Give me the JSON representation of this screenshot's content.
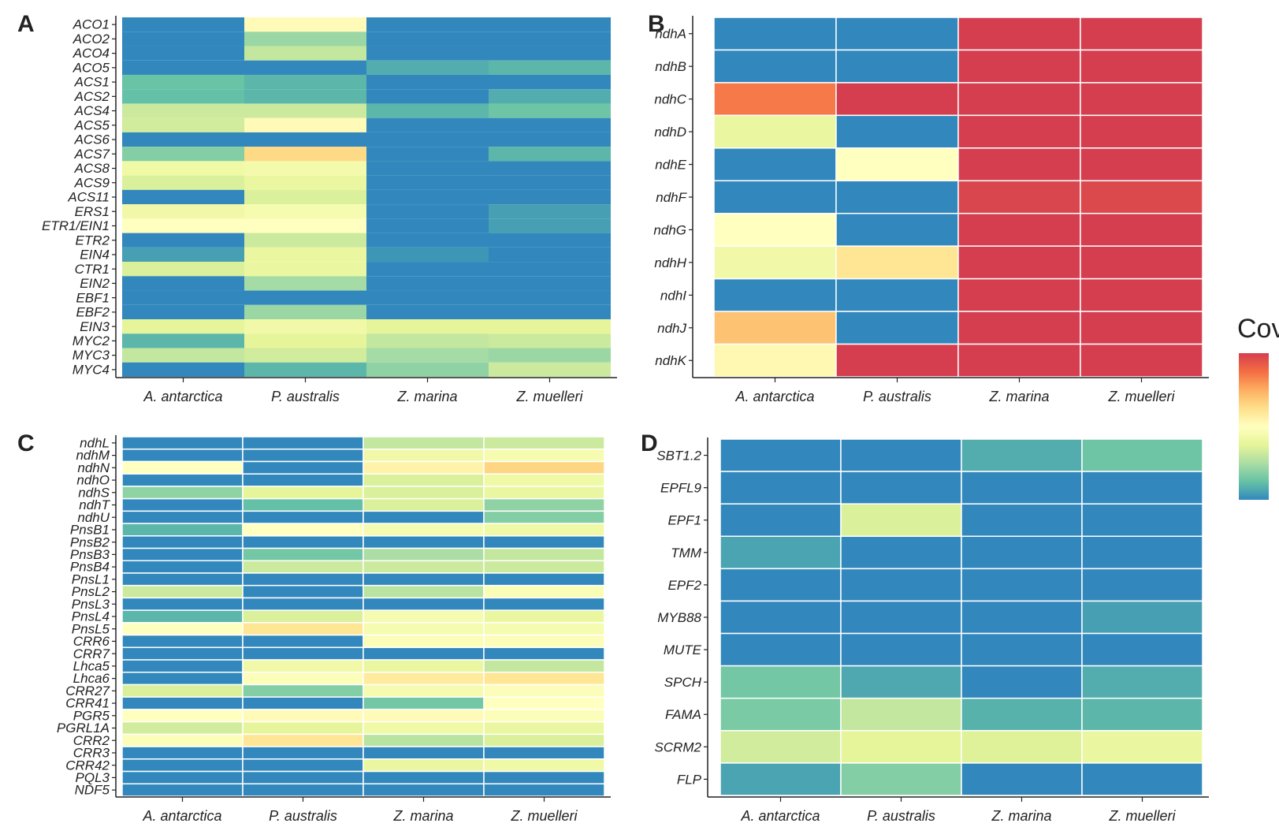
{
  "colors": {
    "scale": [
      "#3288bd",
      "#66c2a5",
      "#abdda4",
      "#e6f598",
      "#ffffbf",
      "#fee08b",
      "#fdae61",
      "#f46d43",
      "#d53e4f"
    ],
    "cell_border_B": "#ffffff",
    "axis": "#222222"
  },
  "legend": {
    "title": "Cov"
  },
  "chart_data": [
    {
      "type": "heatmap",
      "panel_label": "A",
      "categories": [
        "A. antarctica",
        "P. australis",
        "Z. marina",
        "Z. muelleri"
      ],
      "rows": [
        "ACO1",
        "ACO2",
        "ACO4",
        "ACO5",
        "ACS1",
        "ACS2",
        "ACS4",
        "ACS5",
        "ACS6",
        "ACS7",
        "ACS8",
        "ACS9",
        "ACS11",
        "ERS1",
        "ETR1/EIN1",
        "ETR2",
        "EIN4",
        "CTR1",
        "EIN2",
        "EBF1",
        "EBF2",
        "EIN3",
        "MYC2",
        "MYC3",
        "MYC4"
      ],
      "values": [
        [
          0.0,
          0.52,
          0.0,
          0.0
        ],
        [
          0.0,
          0.22,
          0.0,
          0.0
        ],
        [
          0.0,
          0.3,
          0.0,
          0.0
        ],
        [
          0.0,
          0.0,
          0.08,
          0.1
        ],
        [
          0.13,
          0.1,
          0.0,
          0.0
        ],
        [
          0.12,
          0.1,
          0.0,
          0.08
        ],
        [
          0.32,
          0.32,
          0.1,
          0.14
        ],
        [
          0.33,
          0.52,
          0.0,
          0.0
        ],
        [
          0.0,
          0.0,
          0.0,
          0.0
        ],
        [
          0.18,
          0.64,
          0.0,
          0.1
        ],
        [
          0.42,
          0.44,
          0.0,
          0.0
        ],
        [
          0.35,
          0.4,
          0.0,
          0.0
        ],
        [
          0.0,
          0.35,
          0.0,
          0.0
        ],
        [
          0.43,
          0.45,
          0.0,
          0.05
        ],
        [
          0.5,
          0.5,
          0.0,
          0.05
        ],
        [
          0.0,
          0.32,
          0.0,
          0.0
        ],
        [
          0.05,
          0.4,
          0.03,
          0.0
        ],
        [
          0.35,
          0.4,
          0.0,
          0.0
        ],
        [
          0.0,
          0.24,
          0.0,
          0.0
        ],
        [
          0.0,
          0.0,
          0.0,
          0.0
        ],
        [
          0.0,
          0.22,
          0.0,
          0.0
        ],
        [
          0.38,
          0.43,
          0.38,
          0.38
        ],
        [
          0.1,
          0.38,
          0.3,
          0.32
        ],
        [
          0.3,
          0.33,
          0.24,
          0.22
        ],
        [
          0.0,
          0.1,
          0.2,
          0.32
        ]
      ],
      "cell_borders": false
    },
    {
      "type": "heatmap",
      "panel_label": "B",
      "categories": [
        "A. antarctica",
        "P. australis",
        "Z. marina",
        "Z. muelleri"
      ],
      "rows": [
        "ndhA",
        "ndhB",
        "ndhC",
        "ndhD",
        "ndhE",
        "ndhF",
        "ndhG",
        "ndhH",
        "ndhI",
        "ndhJ",
        "ndhK"
      ],
      "values": [
        [
          0.0,
          0.0,
          1.0,
          1.0
        ],
        [
          0.0,
          0.0,
          1.0,
          1.0
        ],
        [
          0.85,
          1.0,
          1.0,
          1.0
        ],
        [
          0.4,
          0.0,
          1.0,
          1.0
        ],
        [
          0.0,
          0.5,
          1.0,
          1.0
        ],
        [
          0.0,
          0.0,
          0.98,
          0.97
        ],
        [
          0.5,
          0.0,
          1.0,
          1.0
        ],
        [
          0.43,
          0.6,
          1.0,
          1.0
        ],
        [
          0.0,
          0.0,
          1.0,
          1.0
        ],
        [
          0.7,
          0.0,
          1.0,
          1.0
        ],
        [
          0.53,
          1.0,
          1.0,
          1.0
        ]
      ],
      "cell_borders": true
    },
    {
      "type": "heatmap",
      "panel_label": "C",
      "categories": [
        "A. antarctica",
        "P. australis",
        "Z. marina",
        "Z. muelleri"
      ],
      "rows": [
        "ndhL",
        "ndhM",
        "ndhN",
        "ndhO",
        "ndhS",
        "ndhT",
        "ndhU",
        "PnsB1",
        "PnsB2",
        "PnsB3",
        "PnsB4",
        "PnsL1",
        "PnsL2",
        "PnsL3",
        "PnsL4",
        "PnsL5",
        "CRR6",
        "CRR7",
        "Lhca5",
        "Lhca6",
        "CRR27",
        "CRR41",
        "PGR5",
        "PGRL1A",
        "CRR2",
        "CRR3",
        "CRR42",
        "PQL3",
        "NDF5"
      ],
      "values": [
        [
          0.0,
          0.0,
          0.3,
          0.32
        ],
        [
          0.0,
          0.0,
          0.43,
          0.45
        ],
        [
          0.5,
          0.0,
          0.55,
          0.65
        ],
        [
          0.0,
          0.0,
          0.35,
          0.42
        ],
        [
          0.2,
          0.38,
          0.35,
          0.4
        ],
        [
          0.0,
          0.12,
          0.35,
          0.2
        ],
        [
          0.0,
          0.0,
          0.0,
          0.18
        ],
        [
          0.1,
          0.5,
          0.45,
          0.42
        ],
        [
          0.0,
          0.0,
          0.0,
          0.0
        ],
        [
          0.0,
          0.15,
          0.25,
          0.3
        ],
        [
          0.0,
          0.32,
          0.32,
          0.32
        ],
        [
          0.0,
          0.0,
          0.0,
          0.0
        ],
        [
          0.32,
          0.0,
          0.28,
          0.47
        ],
        [
          0.0,
          0.0,
          0.0,
          0.0
        ],
        [
          0.1,
          0.35,
          0.45,
          0.4
        ],
        [
          0.5,
          0.6,
          0.45,
          0.45
        ],
        [
          0.0,
          0.0,
          0.48,
          0.48
        ],
        [
          0.0,
          0.0,
          0.0,
          0.0
        ],
        [
          0.0,
          0.43,
          0.4,
          0.3
        ],
        [
          0.0,
          0.48,
          0.58,
          0.6
        ],
        [
          0.35,
          0.18,
          0.45,
          0.48
        ],
        [
          0.0,
          0.0,
          0.15,
          0.5
        ],
        [
          0.5,
          0.52,
          0.52,
          0.48
        ],
        [
          0.33,
          0.38,
          0.42,
          0.4
        ],
        [
          0.48,
          0.6,
          0.28,
          0.35
        ],
        [
          0.0,
          0.0,
          0.0,
          0.0
        ],
        [
          0.0,
          0.0,
          0.4,
          0.42
        ],
        [
          0.0,
          0.0,
          0.0,
          0.0
        ],
        [
          0.0,
          0.0,
          0.0,
          0.0
        ]
      ],
      "cell_borders": true
    },
    {
      "type": "heatmap",
      "panel_label": "D",
      "categories": [
        "A. antarctica",
        "P. australis",
        "Z. marina",
        "Z. muelleri"
      ],
      "rows": [
        "SBT1.2",
        "EPFL9",
        "EPF1",
        "TMM",
        "EPF2",
        "MYB88",
        "MUTE",
        "SPCH",
        "FAMA",
        "SCRM2",
        "FLP"
      ],
      "values": [
        [
          0.0,
          0.0,
          0.08,
          0.14
        ],
        [
          0.0,
          0.0,
          0.0,
          0.0
        ],
        [
          0.0,
          0.35,
          0.0,
          0.0
        ],
        [
          0.06,
          0.0,
          0.0,
          0.0
        ],
        [
          0.0,
          0.0,
          0.0,
          0.0
        ],
        [
          0.0,
          0.0,
          0.0,
          0.05
        ],
        [
          0.0,
          0.0,
          0.0,
          0.0
        ],
        [
          0.15,
          0.07,
          0.0,
          0.08
        ],
        [
          0.16,
          0.3,
          0.09,
          0.1
        ],
        [
          0.33,
          0.38,
          0.36,
          0.4
        ],
        [
          0.06,
          0.18,
          0.0,
          0.0
        ]
      ],
      "cell_borders": true
    }
  ]
}
